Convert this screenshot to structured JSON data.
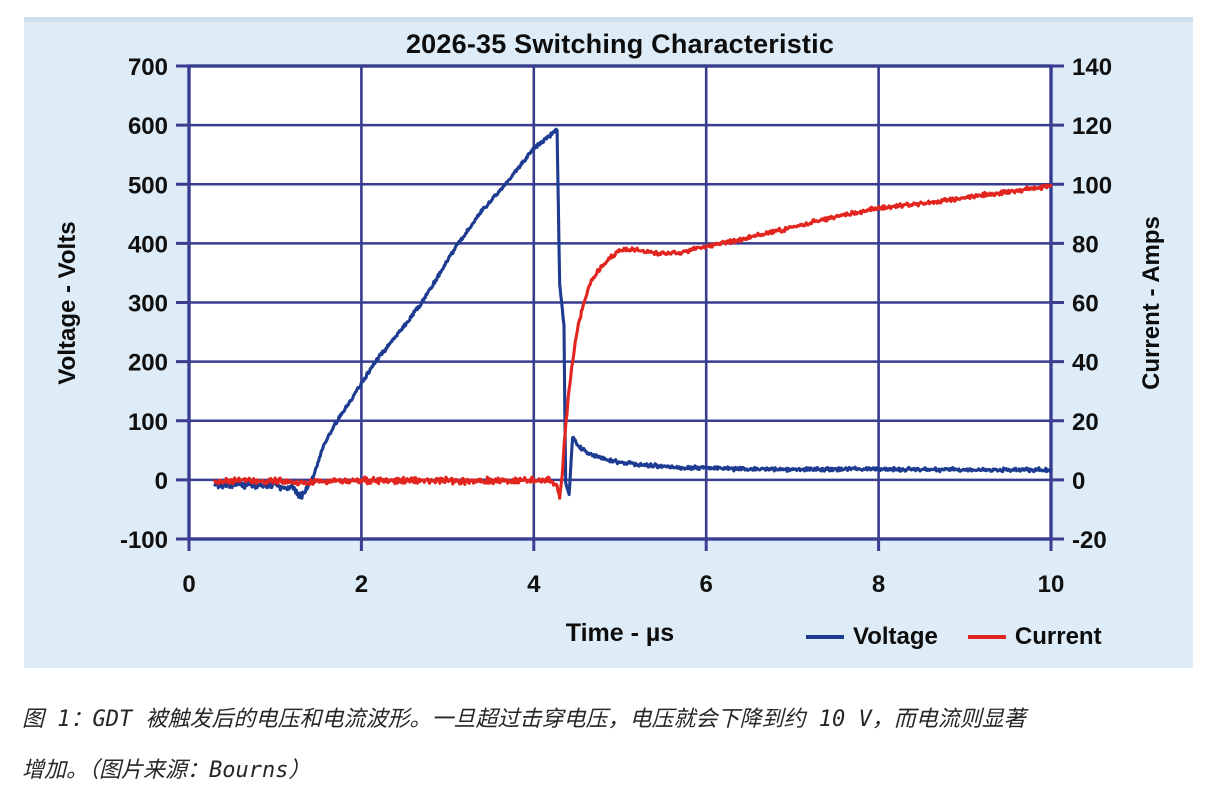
{
  "figure": {
    "caption_lines": [
      "图 1：GDT 被触发后的电压和电流波形。一旦超过击穿电压，电压就会下降到约 10 V，而电流则显著",
      "增加。（图片来源：Bourns）"
    ]
  },
  "chart_data": {
    "type": "line",
    "title": "2026-35 Switching Characteristic",
    "xlabel": "Time - µs",
    "ylabel_left": "Voltage - Volts",
    "ylabel_right": "Current - Amps",
    "xlim": [
      0,
      10
    ],
    "x_ticks": [
      0,
      2,
      4,
      6,
      8,
      10
    ],
    "ylim_left": [
      -100,
      700
    ],
    "y_ticks_left": [
      -100,
      0,
      100,
      200,
      300,
      400,
      500,
      600,
      700
    ],
    "ylim_right": [
      -20,
      140
    ],
    "y_ticks_right": [
      -20,
      0,
      20,
      40,
      60,
      80,
      100,
      120,
      140
    ],
    "grid": true,
    "legend_position": "bottom-right",
    "colors": {
      "panel_bg": "#ddecf7",
      "plot_bg": "#ffffff",
      "grid": "#383d90",
      "text": "#101010"
    },
    "series": [
      {
        "name": "Voltage",
        "axis": "left",
        "units": "V",
        "color": "#1d3b91",
        "points": [
          [
            0.3,
            -8
          ],
          [
            0.5,
            -7
          ],
          [
            0.8,
            -9
          ],
          [
            1.05,
            -10
          ],
          [
            1.2,
            -14
          ],
          [
            1.3,
            -30
          ],
          [
            1.38,
            -10
          ],
          [
            1.45,
            8
          ],
          [
            1.55,
            55
          ],
          [
            1.72,
            100
          ],
          [
            1.95,
            152
          ],
          [
            2.16,
            200
          ],
          [
            2.45,
            252
          ],
          [
            2.7,
            300
          ],
          [
            3.1,
            395
          ],
          [
            3.4,
            455
          ],
          [
            3.67,
            500
          ],
          [
            4.0,
            560
          ],
          [
            4.15,
            578
          ],
          [
            4.27,
            592
          ],
          [
            4.3,
            330
          ],
          [
            4.32,
            305
          ],
          [
            4.34,
            275
          ],
          [
            4.35,
            262
          ],
          [
            4.36,
            120
          ],
          [
            4.37,
            -5
          ],
          [
            4.41,
            -25
          ],
          [
            4.45,
            72
          ],
          [
            4.5,
            60
          ],
          [
            4.58,
            50
          ],
          [
            4.68,
            43
          ],
          [
            4.82,
            35
          ],
          [
            5.0,
            29
          ],
          [
            5.3,
            25
          ],
          [
            5.7,
            21
          ],
          [
            6.2,
            19
          ],
          [
            7.0,
            18
          ],
          [
            8.0,
            18
          ],
          [
            9.0,
            17
          ],
          [
            10.0,
            17
          ]
        ],
        "noise_zones": [
          [
            0.3,
            1.38,
            8
          ],
          [
            1.38,
            4.27,
            4
          ],
          [
            4.27,
            4.45,
            2
          ],
          [
            4.45,
            10,
            4
          ]
        ]
      },
      {
        "name": "Current",
        "axis": "right",
        "units": "A",
        "color": "#e2261f",
        "points": [
          [
            0.3,
            -0.5
          ],
          [
            0.8,
            -0.3
          ],
          [
            1.2,
            -0.8
          ],
          [
            1.3,
            -1.5
          ],
          [
            1.5,
            -0.3
          ],
          [
            2.5,
            -0.2
          ],
          [
            3.5,
            -0.3
          ],
          [
            4.2,
            -0.2
          ],
          [
            4.27,
            -2
          ],
          [
            4.3,
            -6
          ],
          [
            4.33,
            2
          ],
          [
            4.36,
            15
          ],
          [
            4.4,
            28
          ],
          [
            4.45,
            40
          ],
          [
            4.5,
            50
          ],
          [
            4.57,
            59
          ],
          [
            4.65,
            66
          ],
          [
            4.75,
            71
          ],
          [
            4.88,
            75
          ],
          [
            5.0,
            77.5
          ],
          [
            5.15,
            78
          ],
          [
            5.35,
            77
          ],
          [
            5.6,
            76.5
          ],
          [
            5.85,
            78
          ],
          [
            6.1,
            79.5
          ],
          [
            6.5,
            82
          ],
          [
            7.0,
            85.5
          ],
          [
            7.5,
            89
          ],
          [
            8.0,
            92
          ],
          [
            8.5,
            93.5
          ],
          [
            9.0,
            95.5
          ],
          [
            9.5,
            97.5
          ],
          [
            10.0,
            99.5
          ]
        ],
        "noise_zones": [
          [
            0.3,
            4.25,
            1.3
          ],
          [
            4.25,
            10,
            0.9
          ]
        ]
      }
    ]
  }
}
